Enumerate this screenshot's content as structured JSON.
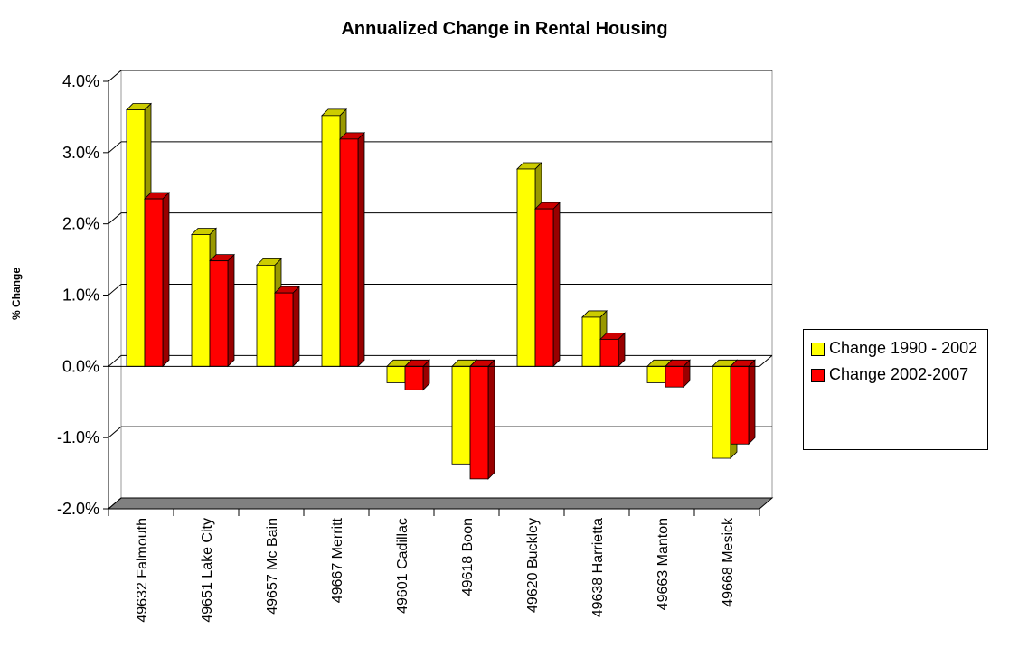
{
  "chart_data": {
    "type": "bar3d",
    "title": "Annualized Change in Rental Housing",
    "y_label": "% Change",
    "categories": [
      "49632 Falmouth",
      "49651 Lake City",
      "49657 Mc Bain",
      "49667 Merritt",
      "49601 Cadillac",
      "49618 Boon",
      "49620 Buckley",
      "49638 Harrietta",
      "49663 Manton",
      "49668 Mesick"
    ],
    "series": [
      {
        "name": "Change 1990 - 2002",
        "color": "#ffff00",
        "values": [
          3.6,
          1.85,
          1.42,
          3.52,
          -0.23,
          -1.37,
          2.77,
          0.69,
          -0.23,
          -1.29
        ]
      },
      {
        "name": "Change 2002-2007",
        "color": "#ff0000",
        "values": [
          2.35,
          1.48,
          1.03,
          3.19,
          -0.33,
          -1.58,
          2.21,
          0.38,
          -0.29,
          -1.09
        ]
      }
    ],
    "ylim": [
      -2,
      4
    ],
    "yticks": [
      {
        "value": -2,
        "label": "-2.0%"
      },
      {
        "value": -1,
        "label": "-1.0%"
      },
      {
        "value": 0,
        "label": "0.0%"
      },
      {
        "value": 1,
        "label": "1.0%"
      },
      {
        "value": 2,
        "label": "2.0%"
      },
      {
        "value": 3,
        "label": "3.0%"
      },
      {
        "value": 4,
        "label": "4.0%"
      }
    ],
    "grid": true,
    "legend": "right"
  }
}
